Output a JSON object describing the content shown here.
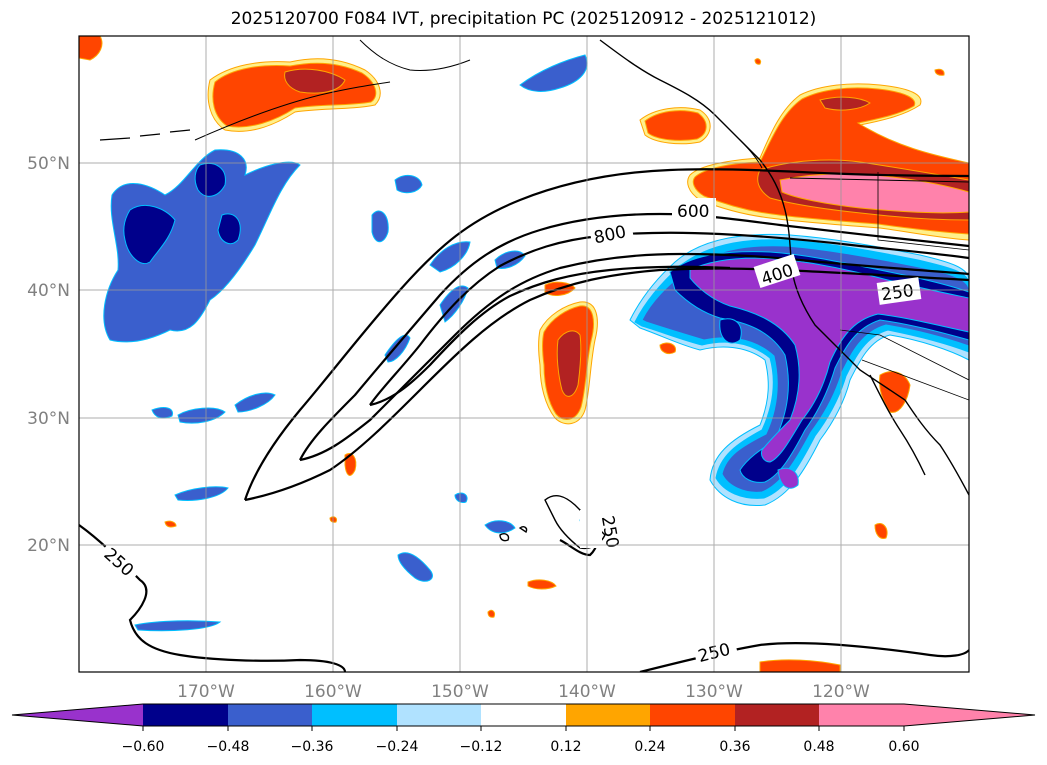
{
  "title": "2025120700 F084 IVT, precipitation PC (2025120912 - 2025121012)",
  "colors": {
    "neg_060": "#9932cc",
    "neg_048": "#00008b",
    "neg_036": "#3a5fcd",
    "neg_024": "#00bfff",
    "neg_012": "#b0e2ff",
    "pos_012": "#fff08c",
    "pos_024": "#ffa500",
    "pos_036": "#ff4500",
    "pos_048": "#b22222",
    "pos_060": "#ff82ab",
    "land": "#ffffff"
  },
  "map": {
    "projection": "PlateCarree",
    "lon_range": [
      -180,
      -110
    ],
    "lat_range": [
      10,
      60
    ],
    "grid": true,
    "lon_ticks": [
      "170°W",
      "160°W",
      "150°W",
      "140°W",
      "130°W",
      "120°W"
    ],
    "lat_ticks": [
      "50°N",
      "40°N",
      "30°N",
      "20°N"
    ]
  },
  "colorbar": {
    "orientation": "horizontal",
    "extend": "both",
    "ticks": [
      "−0.60",
      "−0.48",
      "−0.36",
      "−0.24",
      "−0.12",
      "0.12",
      "0.24",
      "0.36",
      "0.48",
      "0.60"
    ]
  },
  "ivt_contours": {
    "levels": [
      250,
      400,
      600,
      800
    ],
    "labels": [
      "600",
      "800",
      "400",
      "250",
      "250",
      "250",
      "250"
    ]
  }
}
